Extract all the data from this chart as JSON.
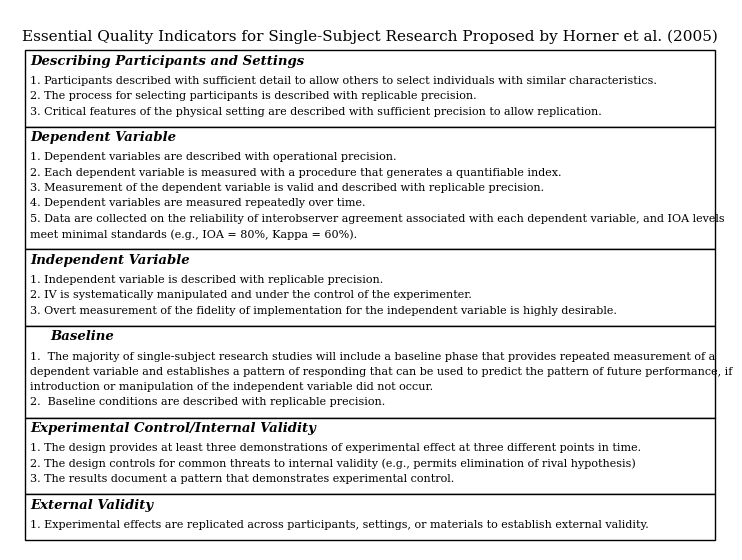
{
  "title": "Essential Quality Indicators for Single-Subject Research Proposed by Horner et al. (2005)",
  "title_fontsize": 11,
  "sections": [
    {
      "heading": "Describing Participants and Settings",
      "items": [
        "1. Participants described with sufficient detail to allow others to select individuals with similar characteristics.",
        "2. The process for selecting participants is described with replicable precision.",
        "3. Critical features of the physical setting are described with sufficient precision to allow replication."
      ]
    },
    {
      "heading": "Dependent Variable",
      "items": [
        "1. Dependent variables are described with operational precision.",
        "2. Each dependent variable is measured with a procedure that generates a quantifiable index.",
        "3. Measurement of the dependent variable is valid and described with replicable precision.",
        "4. Dependent variables are measured repeatedly over time.",
        "5. Data are collected on the reliability of interobserver agreement associated with each dependent variable, and IOA levels\nmeet minimal standards (e.g., IOA = 80%, Kappa = 60%)."
      ]
    },
    {
      "heading": "Independent Variable",
      "items": [
        "1. Independent variable is described with replicable precision.",
        "2. IV is systematically manipulated and under the control of the experimenter.",
        "3. Overt measurement of the fidelity of implementation for the independent variable is highly desirable."
      ]
    },
    {
      "heading": "Baseline",
      "heading_indent": true,
      "items": [
        "1.  The majority of single-subject research studies will include a baseline phase that provides repeated measurement of a\ndependent variable and establishes a pattern of responding that can be used to predict the pattern of future performance, if\nintroduction or manipulation of the independent variable did not occur.",
        "2.  Baseline conditions are described with replicable precision."
      ]
    },
    {
      "heading": "Experimental Control/Internal Validity",
      "items": [
        "1. The design provides at least three demonstrations of experimental effect at three different points in time.",
        "2. The design controls for common threats to internal validity (e.g., permits elimination of rival hypothesis)",
        "3. The results document a pattern that demonstrates experimental control."
      ]
    },
    {
      "heading": "External Validity",
      "items": [
        "1. Experimental effects are replicated across participants, settings, or materials to establish external validity."
      ]
    }
  ],
  "background_color": "#ffffff",
  "border_color": "#000000",
  "heading_fontsize": 9.5,
  "body_fontsize": 8.0
}
